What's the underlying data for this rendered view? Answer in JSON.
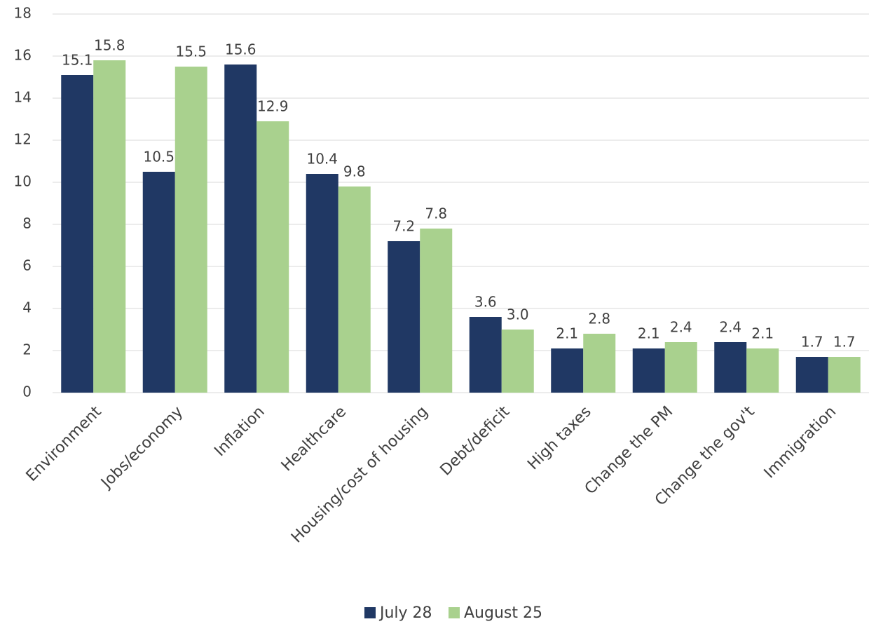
{
  "chart_data": {
    "type": "bar",
    "categories": [
      "Environment",
      "Jobs/economy",
      "Inflation",
      "Healthcare",
      "Housing/cost of housing",
      "Debt/deficit",
      "High taxes",
      "Change the PM",
      "Change the gov't",
      "Immigration"
    ],
    "series": [
      {
        "name": "July 28",
        "color": "#203864",
        "values": [
          15.1,
          10.5,
          15.6,
          10.4,
          7.2,
          3.6,
          2.1,
          2.1,
          2.4,
          1.7
        ],
        "value_labels": [
          "15.1",
          "10.5",
          "15.6",
          "10.4",
          "7.2",
          "3.6",
          "2.1",
          "2.1",
          "2.4",
          "1.7"
        ]
      },
      {
        "name": "August 25",
        "color": "#a9d18e",
        "values": [
          15.8,
          15.5,
          12.9,
          9.8,
          7.8,
          3,
          2.8,
          2.4,
          2.1,
          1.7
        ],
        "value_labels": [
          "15.8",
          "15.5",
          "12.9",
          "9.8",
          "7.8",
          "3.0",
          "2.8",
          "2.4",
          "2.1",
          "1.7"
        ]
      }
    ],
    "ylim": [
      0,
      18
    ],
    "yticks": [
      0,
      2,
      4,
      6,
      8,
      10,
      12,
      14,
      16,
      18
    ],
    "grid": true,
    "legend": "bottom"
  }
}
